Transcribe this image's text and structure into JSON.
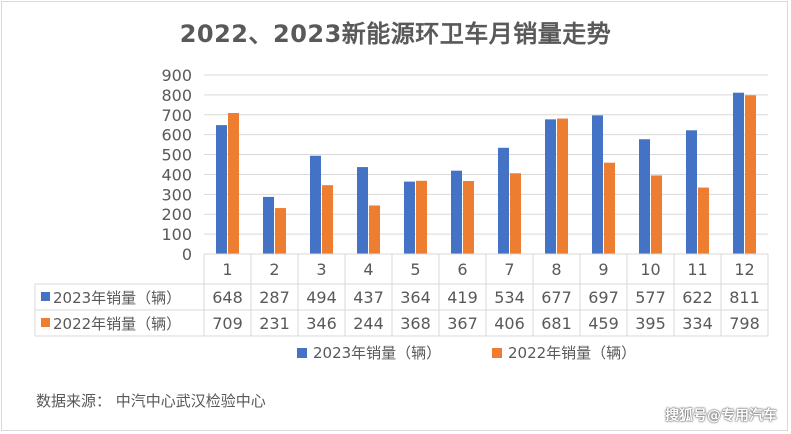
{
  "chart_data": {
    "type": "bar",
    "title": "2022、2023新能源环卫车月销量走势",
    "categories": [
      "1",
      "2",
      "3",
      "4",
      "5",
      "6",
      "7",
      "8",
      "9",
      "10",
      "11",
      "12"
    ],
    "series": [
      {
        "name": "2023年销量（辆）",
        "color": "#4472c4",
        "values": [
          648,
          287,
          494,
          437,
          364,
          419,
          534,
          677,
          697,
          577,
          622,
          811
        ]
      },
      {
        "name": "2022年销量（辆）",
        "color": "#ed7d31",
        "values": [
          709,
          231,
          346,
          244,
          368,
          367,
          406,
          681,
          459,
          395,
          334,
          798
        ]
      }
    ],
    "yticks": [
      0,
      100,
      200,
      300,
      400,
      500,
      600,
      700,
      800,
      900
    ],
    "ylim": [
      0,
      900
    ],
    "grid": true,
    "legend": "bottom",
    "data_table": true
  },
  "source": "数据来源： 中汽中心武汉检验中心",
  "watermark": "搜狐号@专用汽车"
}
